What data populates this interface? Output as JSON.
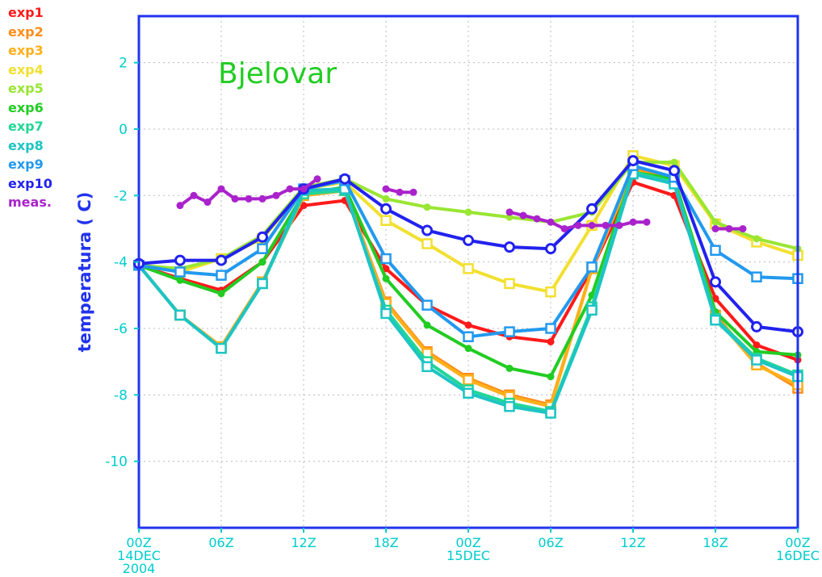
{
  "chart_data": {
    "type": "line",
    "title": "Bjelovar",
    "title_color": "#22cc22",
    "ylabel": "temperatura ( C)",
    "ylabel_color": "#2233ee",
    "ylim": [
      -12,
      3.4
    ],
    "yticks": [
      2,
      0,
      -2,
      -4,
      -6,
      -8,
      -10
    ],
    "ytick_labels": [
      "2",
      "0",
      "-2",
      "-4",
      "-6",
      "-8",
      "-10"
    ],
    "x_hours_range": [
      0,
      48
    ],
    "xticks": [
      {
        "h": 0,
        "lines": [
          "00Z",
          "14DEC",
          "2004"
        ]
      },
      {
        "h": 6,
        "lines": [
          "06Z"
        ]
      },
      {
        "h": 12,
        "lines": [
          "12Z"
        ]
      },
      {
        "h": 18,
        "lines": [
          "18Z"
        ]
      },
      {
        "h": 24,
        "lines": [
          "00Z",
          "15DEC"
        ]
      },
      {
        "h": 30,
        "lines": [
          "06Z"
        ]
      },
      {
        "h": 36,
        "lines": [
          "12Z"
        ]
      },
      {
        "h": 42,
        "lines": [
          "18Z"
        ]
      },
      {
        "h": 48,
        "lines": [
          "00Z",
          "16DEC"
        ]
      }
    ],
    "tick_color": "#00cccc",
    "frame_color": "#2233ee",
    "grid": true,
    "legend_position": "left",
    "x": [
      0,
      3,
      6,
      9,
      12,
      15,
      18,
      21,
      24,
      27,
      30,
      33,
      36,
      39,
      42,
      45,
      48
    ],
    "series": [
      {
        "name": "exp1",
        "color": "#ff1a1a",
        "marker": "dot",
        "values": [
          -4.1,
          -4.5,
          -4.85,
          -4.0,
          -2.3,
          -2.15,
          -4.2,
          -5.3,
          -5.9,
          -6.25,
          -6.4,
          -4.2,
          -1.6,
          -2.0,
          -5.1,
          -6.5,
          -6.95
        ]
      },
      {
        "name": "exp2",
        "color": "#ff8c1a",
        "marker": "square",
        "values": [
          -4.1,
          -5.6,
          -6.55,
          -4.6,
          -2.0,
          -1.85,
          -5.2,
          -6.7,
          -7.5,
          -8.0,
          -8.3,
          -4.2,
          -1.2,
          -1.5,
          -5.6,
          -7.05,
          -7.8
        ]
      },
      {
        "name": "exp3",
        "color": "#ffb01a",
        "marker": "square",
        "values": [
          -4.1,
          -5.6,
          -6.55,
          -4.6,
          -2.0,
          -1.85,
          -5.25,
          -6.75,
          -7.55,
          -8.05,
          -8.35,
          -4.2,
          -1.25,
          -1.55,
          -5.65,
          -7.1,
          -7.7
        ]
      },
      {
        "name": "exp4",
        "color": "#f2e030",
        "marker": "square",
        "values": [
          -4.1,
          -4.3,
          -3.9,
          -3.3,
          -1.8,
          -1.6,
          -2.75,
          -3.45,
          -4.2,
          -4.65,
          -4.9,
          -2.9,
          -0.8,
          -1.1,
          -2.85,
          -3.4,
          -3.8
        ]
      },
      {
        "name": "exp5",
        "color": "#99e633",
        "marker": "dot",
        "values": [
          -4.1,
          -4.2,
          -3.9,
          -3.2,
          -1.75,
          -1.5,
          -2.1,
          -2.35,
          -2.5,
          -2.65,
          -2.8,
          -2.5,
          -1.0,
          -1.0,
          -2.8,
          -3.3,
          -3.6
        ]
      },
      {
        "name": "exp6",
        "color": "#22cc22",
        "marker": "dot",
        "values": [
          -4.1,
          -4.55,
          -4.95,
          -4.0,
          -1.95,
          -1.75,
          -4.5,
          -5.9,
          -6.6,
          -7.2,
          -7.45,
          -5.0,
          -1.3,
          -1.5,
          -5.5,
          -6.7,
          -6.8
        ]
      },
      {
        "name": "exp7",
        "color": "#22d696",
        "marker": "square",
        "values": [
          -4.1,
          -5.6,
          -6.6,
          -4.65,
          -1.95,
          -1.85,
          -5.45,
          -7.0,
          -7.85,
          -8.25,
          -8.5,
          -5.35,
          -1.3,
          -1.6,
          -5.7,
          -6.9,
          -7.4
        ]
      },
      {
        "name": "exp8",
        "color": "#1ec4c4",
        "marker": "square",
        "values": [
          -4.1,
          -5.6,
          -6.6,
          -4.65,
          -1.85,
          -1.8,
          -5.55,
          -7.15,
          -7.95,
          -8.35,
          -8.55,
          -5.45,
          -1.35,
          -1.65,
          -5.75,
          -6.95,
          -7.45
        ]
      },
      {
        "name": "exp9",
        "color": "#2299ee",
        "marker": "square",
        "values": [
          -4.1,
          -4.3,
          -4.4,
          -3.6,
          -1.8,
          -1.55,
          -3.9,
          -5.3,
          -6.25,
          -6.1,
          -6.0,
          -4.15,
          -1.1,
          -1.45,
          -3.65,
          -4.45,
          -4.5
        ]
      },
      {
        "name": "exp10",
        "color": "#2222ee",
        "marker": "circle",
        "values": [
          -4.05,
          -3.95,
          -3.95,
          -3.25,
          -1.8,
          -1.5,
          -2.4,
          -3.05,
          -3.35,
          -3.55,
          -3.6,
          -2.4,
          -0.95,
          -1.25,
          -4.6,
          -5.95,
          -6.1
        ]
      },
      {
        "name": "meas.",
        "color": "#aa22cc",
        "marker": "dot",
        "segments": [
          {
            "x": [
              3,
              4,
              5,
              6,
              7,
              8,
              9,
              10,
              11,
              12,
              13
            ],
            "values": [
              -2.3,
              -2.0,
              -2.2,
              -1.8,
              -2.1,
              -2.1,
              -2.1,
              -2.0,
              -1.8,
              -1.8,
              -1.5
            ]
          },
          {
            "x": [
              18,
              19,
              20
            ],
            "values": [
              -1.8,
              -1.9,
              -1.9
            ]
          },
          {
            "x": [
              27,
              28,
              29,
              30,
              31,
              32,
              33,
              34,
              35,
              36,
              37
            ],
            "values": [
              -2.5,
              -2.6,
              -2.7,
              -2.8,
              -3.0,
              -2.9,
              -2.9,
              -2.9,
              -2.9,
              -2.8,
              -2.8
            ]
          },
          {
            "x": [
              42,
              43,
              44
            ],
            "values": [
              -3.0,
              -3.0,
              -3.0
            ]
          }
        ]
      }
    ]
  }
}
